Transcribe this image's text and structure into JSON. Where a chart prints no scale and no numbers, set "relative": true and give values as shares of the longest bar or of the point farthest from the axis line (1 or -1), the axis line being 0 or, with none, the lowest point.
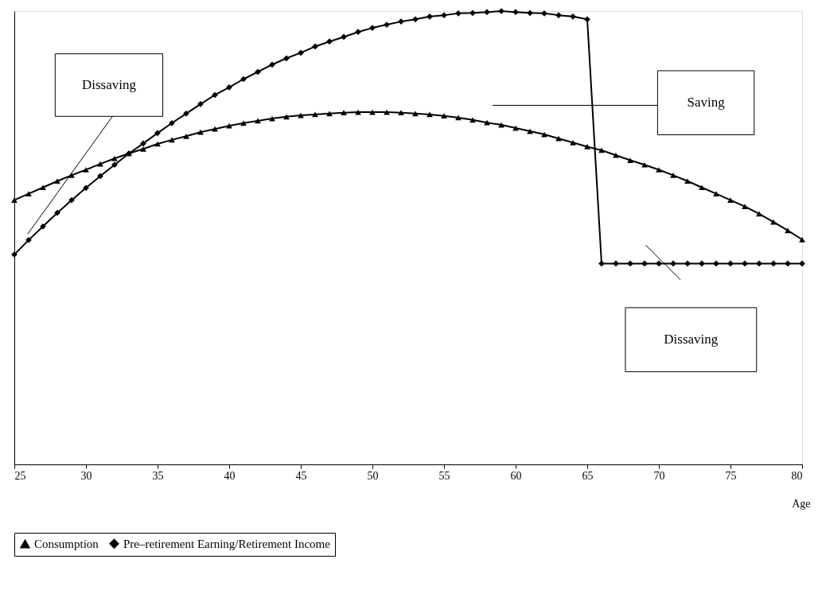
{
  "chart_data": {
    "type": "line",
    "relative": true,
    "xlabel": "Age",
    "x": [
      25,
      26,
      27,
      28,
      29,
      30,
      31,
      32,
      33,
      34,
      35,
      36,
      37,
      38,
      39,
      40,
      41,
      42,
      43,
      44,
      45,
      46,
      47,
      48,
      49,
      50,
      51,
      52,
      53,
      54,
      55,
      56,
      57,
      58,
      59,
      60,
      61,
      62,
      63,
      64,
      65,
      66,
      67,
      68,
      69,
      70,
      71,
      72,
      73,
      74,
      75,
      76,
      77,
      78,
      79,
      80
    ],
    "xlim": [
      25,
      80
    ],
    "xticks": [
      25,
      30,
      35,
      40,
      45,
      50,
      55,
      60,
      65,
      70,
      75,
      80
    ],
    "series": [
      {
        "name": "Consumption",
        "color": "#000000",
        "marker": "triangle",
        "values": [
          0.583,
          0.597,
          0.611,
          0.625,
          0.638,
          0.65,
          0.663,
          0.675,
          0.686,
          0.696,
          0.707,
          0.716,
          0.724,
          0.733,
          0.74,
          0.747,
          0.753,
          0.758,
          0.763,
          0.767,
          0.77,
          0.772,
          0.774,
          0.776,
          0.777,
          0.777,
          0.777,
          0.776,
          0.774,
          0.772,
          0.769,
          0.765,
          0.76,
          0.754,
          0.749,
          0.742,
          0.735,
          0.728,
          0.719,
          0.71,
          0.701,
          0.693,
          0.682,
          0.671,
          0.661,
          0.65,
          0.638,
          0.625,
          0.611,
          0.597,
          0.583,
          0.569,
          0.553,
          0.535,
          0.516,
          0.496
        ]
      },
      {
        "name": "Pre–retirement Earning/Retirement Income",
        "color": "#000000",
        "marker": "diamond",
        "values": [
          0.463,
          0.495,
          0.525,
          0.555,
          0.583,
          0.61,
          0.636,
          0.661,
          0.686,
          0.708,
          0.731,
          0.753,
          0.774,
          0.795,
          0.815,
          0.832,
          0.85,
          0.866,
          0.882,
          0.896,
          0.908,
          0.922,
          0.933,
          0.943,
          0.954,
          0.963,
          0.97,
          0.977,
          0.982,
          0.988,
          0.991,
          0.995,
          0.996,
          0.998,
          1.0,
          0.998,
          0.996,
          0.995,
          0.991,
          0.988,
          0.982,
          0.443,
          0.443,
          0.443,
          0.443,
          0.443,
          0.443,
          0.443,
          0.443,
          0.443,
          0.443,
          0.443,
          0.443,
          0.443,
          0.443,
          0.443
        ]
      }
    ],
    "legend": "bottom",
    "grid": false,
    "line_style": "solid",
    "annotations": [
      "Dissaving",
      "Saving",
      "Dissaving"
    ]
  }
}
